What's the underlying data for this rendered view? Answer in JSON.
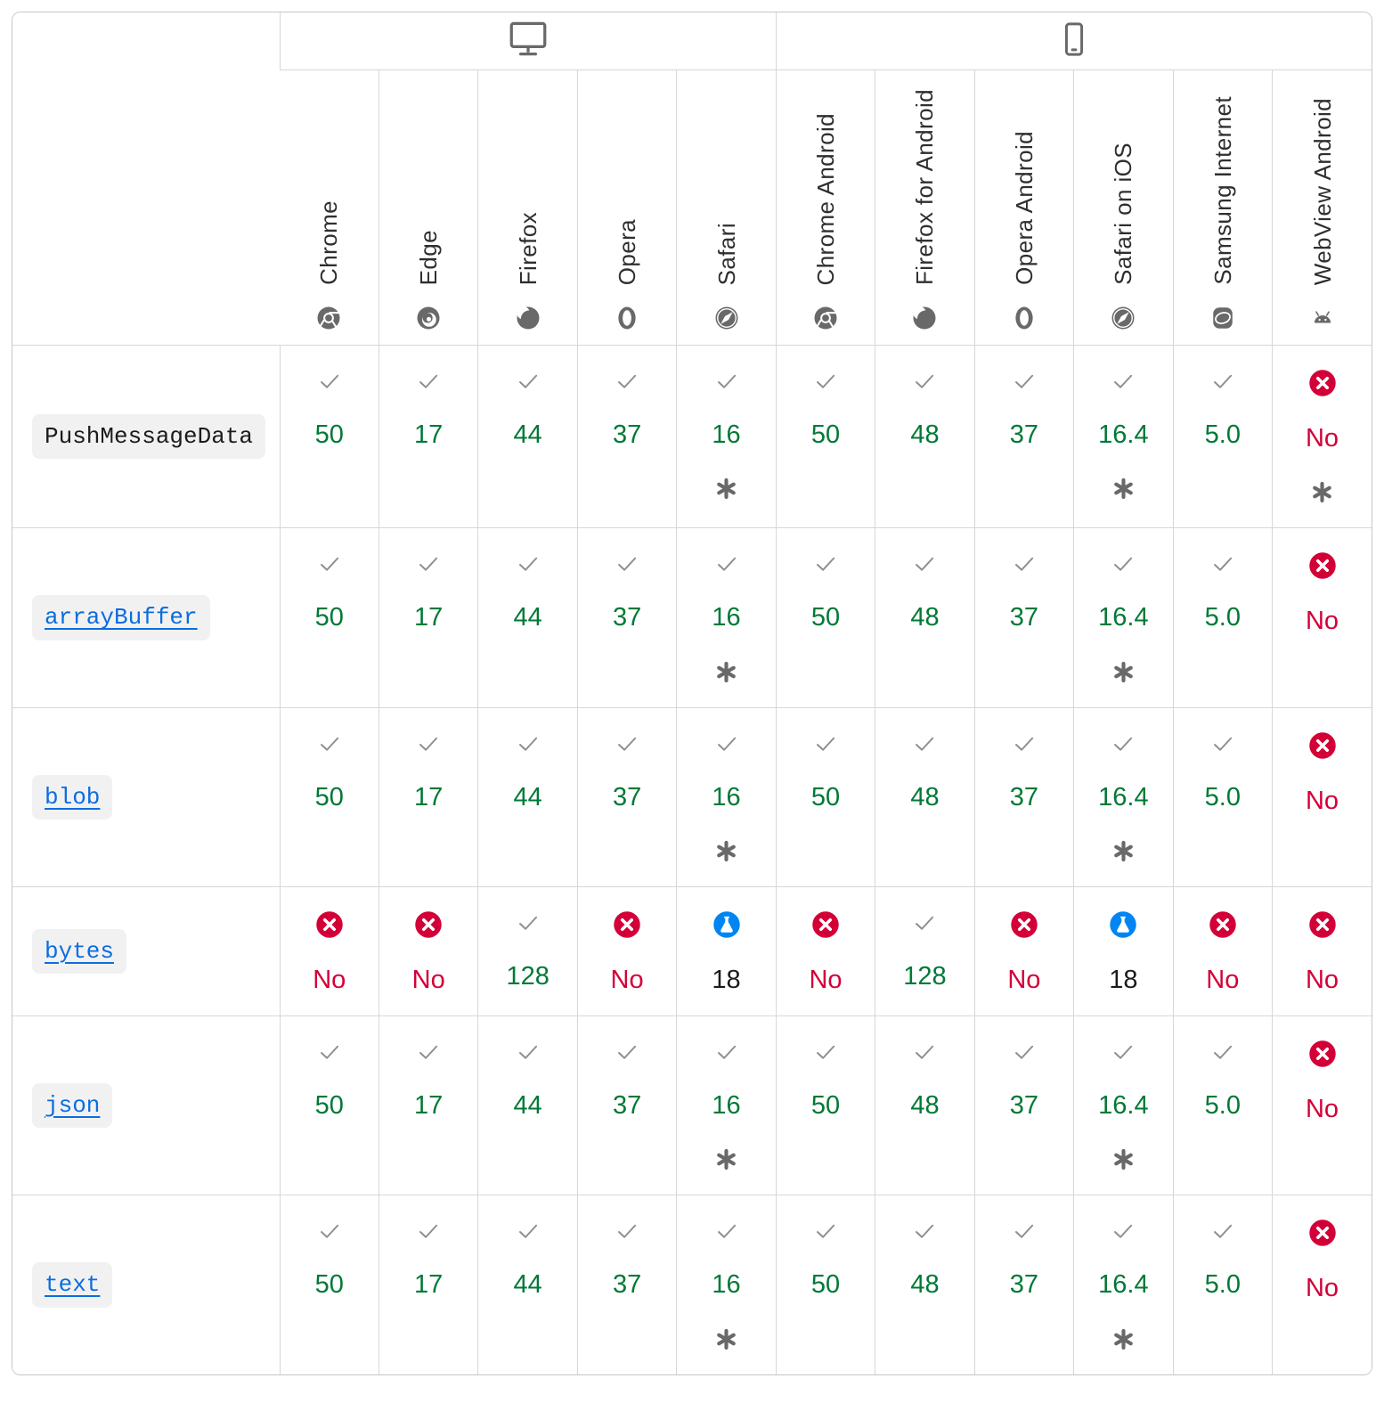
{
  "colors": {
    "supported_text": "#007936",
    "unsupported_text": "#d30038",
    "unsupported_badge": "#d30038",
    "preview_badge": "#0085f2",
    "preview_text": "#1b1b1b",
    "icon_gray": "#696969",
    "link_blue": "#0a6de0",
    "code_background": "#f2f1f1"
  },
  "header": {
    "platforms": [
      {
        "name": "desktop",
        "icon": "desktop-icon",
        "span": 5
      },
      {
        "name": "mobile",
        "icon": "mobile-icon",
        "span": 6
      }
    ],
    "browsers": [
      {
        "label": "Chrome",
        "icon": "chrome-icon"
      },
      {
        "label": "Edge",
        "icon": "edge-icon"
      },
      {
        "label": "Firefox",
        "icon": "firefox-icon"
      },
      {
        "label": "Opera",
        "icon": "opera-icon"
      },
      {
        "label": "Safari",
        "icon": "safari-icon"
      },
      {
        "label": "Chrome Android",
        "icon": "chrome-icon"
      },
      {
        "label": "Firefox for Android",
        "icon": "firefox-icon"
      },
      {
        "label": "Opera Android",
        "icon": "opera-icon"
      },
      {
        "label": "Safari on iOS",
        "icon": "safari-icon"
      },
      {
        "label": "Samsung Internet",
        "icon": "samsung-internet-icon"
      },
      {
        "label": "WebView Android",
        "icon": "webview-android-icon"
      }
    ]
  },
  "status_icons": {
    "yes": "check-icon",
    "no": "no-circle-icon",
    "preview": "preview-flask-icon",
    "footnote": "footnote-asterisk-icon"
  },
  "rows": [
    {
      "feature": "PushMessageData",
      "is_link": false,
      "support": [
        {
          "status": "yes",
          "version": "50",
          "footnote": false
        },
        {
          "status": "yes",
          "version": "17",
          "footnote": false
        },
        {
          "status": "yes",
          "version": "44",
          "footnote": false
        },
        {
          "status": "yes",
          "version": "37",
          "footnote": false
        },
        {
          "status": "yes",
          "version": "16",
          "footnote": true
        },
        {
          "status": "yes",
          "version": "50",
          "footnote": false
        },
        {
          "status": "yes",
          "version": "48",
          "footnote": false
        },
        {
          "status": "yes",
          "version": "37",
          "footnote": false
        },
        {
          "status": "yes",
          "version": "16.4",
          "footnote": true
        },
        {
          "status": "yes",
          "version": "5.0",
          "footnote": false
        },
        {
          "status": "no",
          "version": "No",
          "footnote": true
        }
      ]
    },
    {
      "feature": "arrayBuffer",
      "is_link": true,
      "support": [
        {
          "status": "yes",
          "version": "50",
          "footnote": false
        },
        {
          "status": "yes",
          "version": "17",
          "footnote": false
        },
        {
          "status": "yes",
          "version": "44",
          "footnote": false
        },
        {
          "status": "yes",
          "version": "37",
          "footnote": false
        },
        {
          "status": "yes",
          "version": "16",
          "footnote": true
        },
        {
          "status": "yes",
          "version": "50",
          "footnote": false
        },
        {
          "status": "yes",
          "version": "48",
          "footnote": false
        },
        {
          "status": "yes",
          "version": "37",
          "footnote": false
        },
        {
          "status": "yes",
          "version": "16.4",
          "footnote": true
        },
        {
          "status": "yes",
          "version": "5.0",
          "footnote": false
        },
        {
          "status": "no",
          "version": "No",
          "footnote": false
        }
      ]
    },
    {
      "feature": "blob",
      "is_link": true,
      "support": [
        {
          "status": "yes",
          "version": "50",
          "footnote": false
        },
        {
          "status": "yes",
          "version": "17",
          "footnote": false
        },
        {
          "status": "yes",
          "version": "44",
          "footnote": false
        },
        {
          "status": "yes",
          "version": "37",
          "footnote": false
        },
        {
          "status": "yes",
          "version": "16",
          "footnote": true
        },
        {
          "status": "yes",
          "version": "50",
          "footnote": false
        },
        {
          "status": "yes",
          "version": "48",
          "footnote": false
        },
        {
          "status": "yes",
          "version": "37",
          "footnote": false
        },
        {
          "status": "yes",
          "version": "16.4",
          "footnote": true
        },
        {
          "status": "yes",
          "version": "5.0",
          "footnote": false
        },
        {
          "status": "no",
          "version": "No",
          "footnote": false
        }
      ]
    },
    {
      "feature": "bytes",
      "is_link": true,
      "support": [
        {
          "status": "no",
          "version": "No",
          "footnote": false
        },
        {
          "status": "no",
          "version": "No",
          "footnote": false
        },
        {
          "status": "yes",
          "version": "128",
          "footnote": false
        },
        {
          "status": "no",
          "version": "No",
          "footnote": false
        },
        {
          "status": "preview",
          "version": "18",
          "footnote": false
        },
        {
          "status": "no",
          "version": "No",
          "footnote": false
        },
        {
          "status": "yes",
          "version": "128",
          "footnote": false
        },
        {
          "status": "no",
          "version": "No",
          "footnote": false
        },
        {
          "status": "preview",
          "version": "18",
          "footnote": false
        },
        {
          "status": "no",
          "version": "No",
          "footnote": false
        },
        {
          "status": "no",
          "version": "No",
          "footnote": false
        }
      ]
    },
    {
      "feature": "json",
      "is_link": true,
      "support": [
        {
          "status": "yes",
          "version": "50",
          "footnote": false
        },
        {
          "status": "yes",
          "version": "17",
          "footnote": false
        },
        {
          "status": "yes",
          "version": "44",
          "footnote": false
        },
        {
          "status": "yes",
          "version": "37",
          "footnote": false
        },
        {
          "status": "yes",
          "version": "16",
          "footnote": true
        },
        {
          "status": "yes",
          "version": "50",
          "footnote": false
        },
        {
          "status": "yes",
          "version": "48",
          "footnote": false
        },
        {
          "status": "yes",
          "version": "37",
          "footnote": false
        },
        {
          "status": "yes",
          "version": "16.4",
          "footnote": true
        },
        {
          "status": "yes",
          "version": "5.0",
          "footnote": false
        },
        {
          "status": "no",
          "version": "No",
          "footnote": false
        }
      ]
    },
    {
      "feature": "text",
      "is_link": true,
      "support": [
        {
          "status": "yes",
          "version": "50",
          "footnote": false
        },
        {
          "status": "yes",
          "version": "17",
          "footnote": false
        },
        {
          "status": "yes",
          "version": "44",
          "footnote": false
        },
        {
          "status": "yes",
          "version": "37",
          "footnote": false
        },
        {
          "status": "yes",
          "version": "16",
          "footnote": true
        },
        {
          "status": "yes",
          "version": "50",
          "footnote": false
        },
        {
          "status": "yes",
          "version": "48",
          "footnote": false
        },
        {
          "status": "yes",
          "version": "37",
          "footnote": false
        },
        {
          "status": "yes",
          "version": "16.4",
          "footnote": true
        },
        {
          "status": "yes",
          "version": "5.0",
          "footnote": false
        },
        {
          "status": "no",
          "version": "No",
          "footnote": false
        }
      ]
    }
  ]
}
